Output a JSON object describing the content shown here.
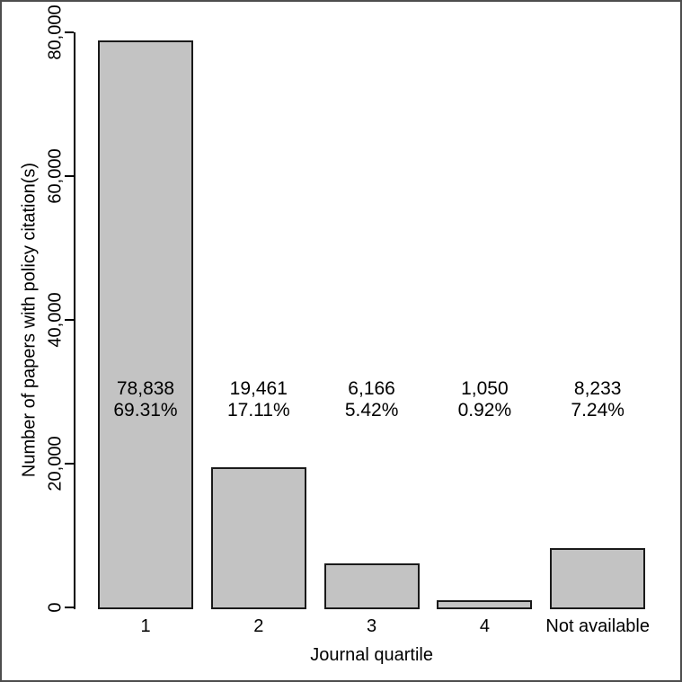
{
  "figure": {
    "background_color": "#ffffff",
    "frame_color": "#4d4d4d"
  },
  "chart_data": {
    "type": "bar",
    "title": "",
    "xlabel": "Journal quartile",
    "ylabel": "Number of papers with policy citation(s)",
    "categories": [
      "1",
      "2",
      "3",
      "4",
      "Not available"
    ],
    "values": [
      78838,
      19461,
      6166,
      1050,
      8233
    ],
    "bar_labels": [
      {
        "value": "78,838",
        "percent": "69.31%"
      },
      {
        "value": "19,461",
        "percent": "17.11%"
      },
      {
        "value": "6,166",
        "percent": "5.42%"
      },
      {
        "value": "1,050",
        "percent": "0.92%"
      },
      {
        "value": "8,233",
        "percent": "7.24%"
      }
    ],
    "y_ticks": [
      {
        "value": 0,
        "label": "0"
      },
      {
        "value": 20000,
        "label": "20,000"
      },
      {
        "value": 40000,
        "label": "40,000"
      },
      {
        "value": 60000,
        "label": "60,000"
      },
      {
        "value": 80000,
        "label": "80,000"
      }
    ],
    "ylim": [
      0,
      80000
    ],
    "grid": false,
    "legend": null,
    "bar_fill_color": "#c3c3c3",
    "bar_border_color": "#1a1a1a",
    "axis_color": "#000000",
    "text_color": "#000000"
  }
}
